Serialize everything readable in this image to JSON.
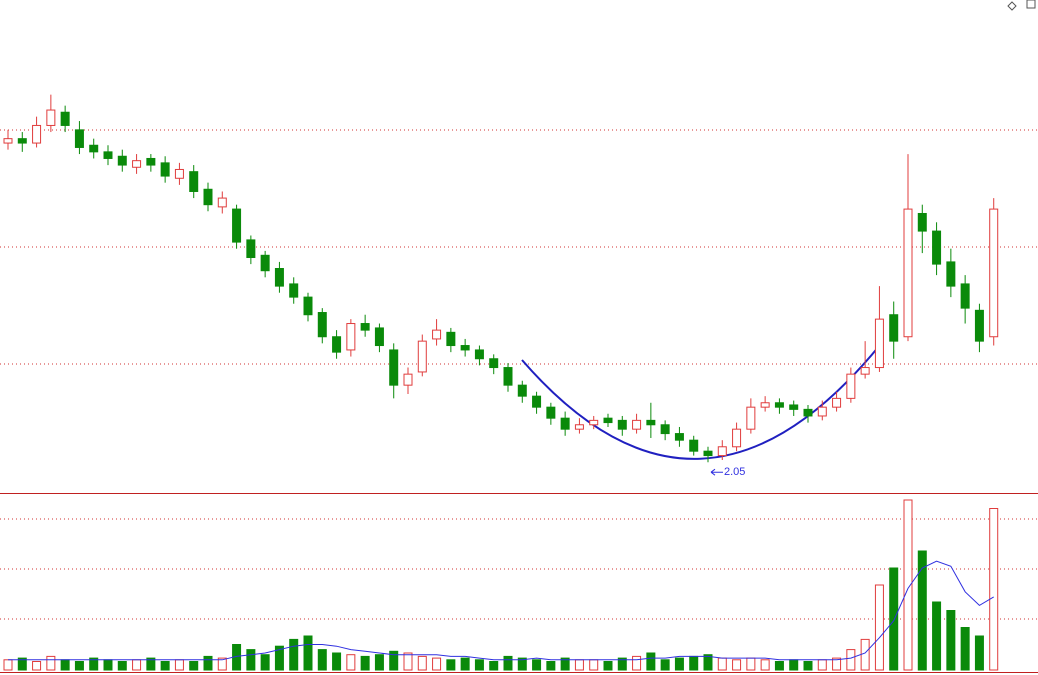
{
  "chart_data": {
    "type": "candlestick",
    "up_color": "#e03c3c",
    "down_color": "#0a8a0a",
    "volume_ma_color": "#3030e0",
    "ylim": [
      1.91,
      4.15
    ],
    "vlim": [
      0,
      100
    ],
    "low_label": "2.05",
    "open": [
      3.5,
      3.52,
      3.5,
      3.58,
      3.64,
      3.56,
      3.49,
      3.46,
      3.44,
      3.39,
      3.43,
      3.41,
      3.34,
      3.37,
      3.29,
      3.21,
      3.2,
      3.06,
      2.99,
      2.93,
      2.86,
      2.8,
      2.73,
      2.62,
      2.56,
      2.68,
      2.66,
      2.56,
      2.4,
      2.46,
      2.61,
      2.64,
      2.58,
      2.56,
      2.52,
      2.48,
      2.4,
      2.35,
      2.3,
      2.25,
      2.2,
      2.22,
      2.25,
      2.24,
      2.2,
      2.24,
      2.22,
      2.18,
      2.15,
      2.1,
      2.08,
      2.12,
      2.2,
      2.3,
      2.32,
      2.31,
      2.29,
      2.26,
      2.3,
      2.34,
      2.45,
      2.48,
      2.72,
      2.62,
      3.18,
      3.1,
      2.96,
      2.86,
      2.74,
      2.62
    ],
    "high": [
      3.56,
      3.55,
      3.62,
      3.72,
      3.67,
      3.6,
      3.52,
      3.49,
      3.47,
      3.45,
      3.45,
      3.44,
      3.41,
      3.4,
      3.32,
      3.28,
      3.22,
      3.08,
      3.01,
      2.96,
      2.89,
      2.82,
      2.75,
      2.65,
      2.7,
      2.72,
      2.68,
      2.59,
      2.48,
      2.63,
      2.7,
      2.66,
      2.61,
      2.58,
      2.54,
      2.5,
      2.42,
      2.37,
      2.32,
      2.28,
      2.25,
      2.26,
      2.27,
      2.26,
      2.27,
      2.32,
      2.24,
      2.21,
      2.17,
      2.12,
      2.15,
      2.23,
      2.34,
      2.35,
      2.34,
      2.33,
      2.31,
      2.33,
      2.37,
      2.48,
      2.6,
      2.85,
      2.78,
      3.45,
      3.22,
      3.14,
      3.02,
      2.9,
      2.77,
      3.25
    ],
    "low": [
      3.47,
      3.46,
      3.48,
      3.55,
      3.55,
      3.45,
      3.43,
      3.4,
      3.37,
      3.36,
      3.37,
      3.32,
      3.31,
      3.25,
      3.19,
      3.18,
      3.02,
      2.95,
      2.89,
      2.82,
      2.77,
      2.69,
      2.59,
      2.52,
      2.53,
      2.62,
      2.55,
      2.34,
      2.36,
      2.44,
      2.58,
      2.55,
      2.53,
      2.49,
      2.45,
      2.37,
      2.32,
      2.27,
      2.22,
      2.17,
      2.18,
      2.2,
      2.21,
      2.17,
      2.18,
      2.16,
      2.15,
      2.12,
      2.08,
      2.05,
      2.06,
      2.1,
      2.18,
      2.28,
      2.27,
      2.26,
      2.23,
      2.24,
      2.28,
      2.32,
      2.43,
      2.46,
      2.52,
      2.6,
      3.0,
      2.9,
      2.8,
      2.68,
      2.55,
      2.58
    ],
    "close": [
      3.52,
      3.5,
      3.58,
      3.65,
      3.58,
      3.48,
      3.46,
      3.43,
      3.4,
      3.42,
      3.4,
      3.35,
      3.38,
      3.28,
      3.22,
      3.25,
      3.05,
      2.98,
      2.92,
      2.85,
      2.8,
      2.72,
      2.62,
      2.55,
      2.68,
      2.65,
      2.58,
      2.4,
      2.45,
      2.6,
      2.65,
      2.58,
      2.56,
      2.52,
      2.48,
      2.4,
      2.35,
      2.3,
      2.25,
      2.2,
      2.22,
      2.24,
      2.23,
      2.2,
      2.24,
      2.22,
      2.18,
      2.15,
      2.1,
      2.08,
      2.12,
      2.2,
      2.3,
      2.32,
      2.3,
      2.29,
      2.26,
      2.3,
      2.34,
      2.45,
      2.48,
      2.7,
      2.6,
      3.2,
      3.1,
      2.95,
      2.85,
      2.75,
      2.6,
      3.2
    ],
    "volume": [
      6,
      7,
      5,
      8,
      6,
      5,
      7,
      6,
      5,
      6,
      7,
      5,
      6,
      5,
      8,
      7,
      15,
      12,
      9,
      14,
      18,
      20,
      12,
      10,
      9,
      8,
      9,
      11,
      10,
      8,
      7,
      6,
      7,
      6,
      5,
      8,
      7,
      6,
      5,
      7,
      6,
      6,
      5,
      7,
      8,
      10,
      6,
      7,
      8,
      9,
      7,
      6,
      7,
      6,
      5,
      6,
      5,
      6,
      7,
      12,
      18,
      50,
      60,
      100,
      70,
      40,
      35,
      25,
      20,
      95
    ],
    "volume_ma": [
      6,
      6,
      6,
      6,
      6,
      6,
      6,
      6,
      6,
      6,
      6,
      6,
      6,
      6,
      6,
      6,
      8,
      9,
      10,
      12,
      14,
      15,
      15,
      14,
      12,
      11,
      10,
      9,
      9,
      9,
      9,
      8,
      8,
      7,
      6,
      6,
      6,
      7,
      6,
      6,
      6,
      6,
      6,
      6,
      6,
      7,
      7,
      8,
      8,
      8,
      7,
      7,
      7,
      7,
      6,
      6,
      6,
      6,
      6,
      7,
      10,
      19,
      29,
      48,
      60,
      64,
      61,
      46,
      38,
      43
    ]
  }
}
